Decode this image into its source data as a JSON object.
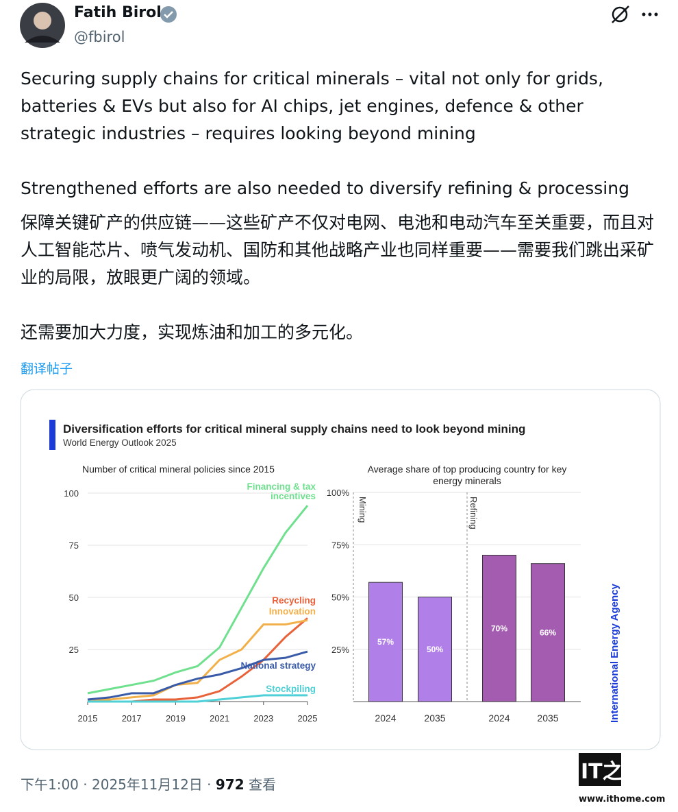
{
  "author": {
    "name": "Fatih Birol",
    "handle": "@fbirol"
  },
  "post": {
    "paragraphs": [
      "Securing supply chains for critical minerals – vital not only for grids, batteries & EVs but also for AI chips, jet engines, defence & other strategic industries – requires looking beyond mining",
      "Strengthened efforts are also needed to diversify refining & processing",
      "保障关键矿产的供应链——这些矿产不仅对电网、电池和电动汽车至关重要，而且对人工智能芯片、喷气发动机、国防和其他战略产业也同样重要——需要我们跳出采矿业的局限，放眼更广阔的领域。",
      "还需要加大力度，实现炼油和加工的多元化。"
    ],
    "translate": "翻译帖子"
  },
  "card": {
    "title": "Diversification efforts for critical mineral supply chains need to look beyond mining",
    "subtitle": "World Energy Outlook 2025",
    "source": "International Energy Agency"
  },
  "chart_data": [
    {
      "type": "line",
      "title": "Number of critical mineral policies since 2015",
      "x": [
        2015,
        2016,
        2017,
        2018,
        2019,
        2020,
        2021,
        2022,
        2023,
        2024,
        2025
      ],
      "xlim": [
        2015,
        2025
      ],
      "xticks": [
        2015,
        2017,
        2019,
        2021,
        2023,
        2025
      ],
      "ylim": [
        0,
        100
      ],
      "yticks": [
        25,
        50,
        75,
        100
      ],
      "grid": true,
      "series": [
        {
          "name": "Financing & tax incentives",
          "color": "#6ee08e",
          "values": [
            4,
            6,
            8,
            10,
            14,
            17,
            26,
            45,
            64,
            81,
            94
          ]
        },
        {
          "name": "Recycling",
          "color": "#e8623a",
          "values": [
            0,
            0,
            0,
            1,
            1,
            2,
            5,
            12,
            20,
            31,
            40
          ]
        },
        {
          "name": "Innovation",
          "color": "#f2b04a",
          "values": [
            1,
            1,
            2,
            3,
            8,
            9,
            20,
            25,
            37,
            37,
            39
          ]
        },
        {
          "name": "National strategy",
          "color": "#3a5ca8",
          "values": [
            1,
            2,
            4,
            4,
            8,
            11,
            13,
            16,
            20,
            21,
            24
          ]
        },
        {
          "name": "Stockpiling",
          "color": "#4fd0d6",
          "values": [
            0,
            0,
            0,
            0,
            0,
            0,
            1,
            2,
            3,
            3,
            3
          ]
        }
      ]
    },
    {
      "type": "bar",
      "title": "Average share of top producing country for key energy minerals",
      "groups": [
        "Mining",
        "Refining"
      ],
      "categories": [
        "2024",
        "2035",
        "2024",
        "2035"
      ],
      "values": [
        57,
        50,
        70,
        66
      ],
      "value_labels": [
        "57%",
        "50%",
        "70%",
        "66%"
      ],
      "colors": [
        "#b07fe8",
        "#b07fe8",
        "#a45cb0",
        "#a45cb0"
      ],
      "ylim": [
        0,
        100
      ],
      "grid": true,
      "yticks": [
        {
          "value": 25,
          "label": "25%"
        },
        {
          "value": 50,
          "label": "50%"
        },
        {
          "value": 75,
          "label": "75%"
        },
        {
          "value": 100,
          "label": "100%"
        }
      ]
    }
  ],
  "footer": {
    "time": "下午1:00",
    "separator": "·",
    "date": "2025年11月12日",
    "views": "972",
    "views_label": "查看"
  },
  "watermark": {
    "logo": "IT之家",
    "url": "www.ithome.com"
  }
}
